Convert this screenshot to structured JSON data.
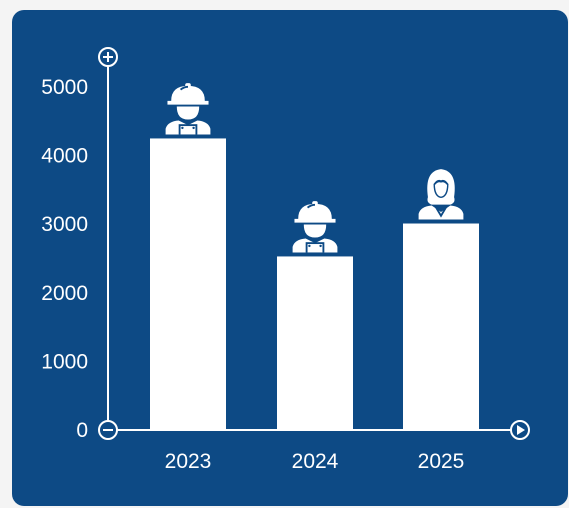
{
  "colors": {
    "background": "#0d4a85",
    "bars": "#ffffff",
    "axis": "#ffffff"
  },
  "axis_icons": {
    "top": "plus-circle-icon",
    "origin": "minus-circle-icon",
    "right": "play-circle-icon"
  },
  "chart_data": {
    "type": "bar",
    "categories": [
      "2023",
      "2024",
      "2025"
    ],
    "values": [
      4250,
      2530,
      3010
    ],
    "ylim": [
      0,
      5000
    ],
    "yticks": [
      "0",
      "1000",
      "2000",
      "3000",
      "4000",
      "5000"
    ],
    "grid": false,
    "icons": [
      "construction-worker-icon",
      "construction-worker-icon",
      "businesswoman-icon"
    ]
  }
}
